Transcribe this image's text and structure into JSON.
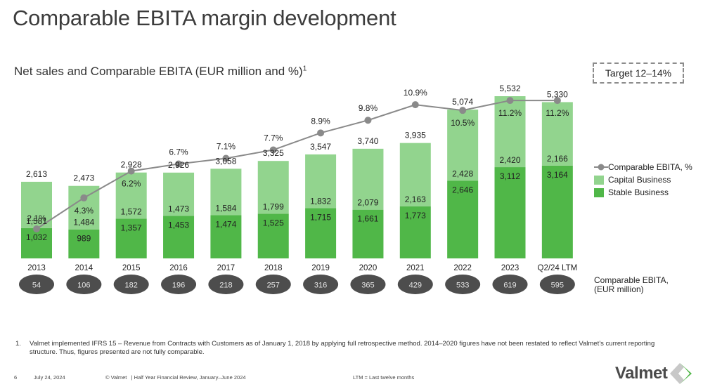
{
  "header": {
    "title": "Comparable EBITA margin development",
    "subtitle": "Net sales and Comparable EBITA (EUR million and %)",
    "subtitle_footnote_ref": "1",
    "target_label": "Target 12–14%"
  },
  "colors": {
    "capital_business": "#92d48e",
    "stable_business": "#50b748",
    "ebita_line": "#8a8a8a",
    "ebita_ellipse": "#4d4d4d",
    "ellipse_text": "#e6e6e6"
  },
  "chart_data": {
    "type": "bar",
    "subtype": "stacked bar with line overlay",
    "title": "Net sales and Comparable EBITA (EUR million and %)",
    "categories": [
      "2013",
      "2014",
      "2015",
      "2016",
      "2017",
      "2018",
      "2019",
      "2020",
      "2021",
      "2022",
      "2023",
      "Q2/24 LTM"
    ],
    "series": [
      {
        "name": "Stable Business",
        "type": "bar",
        "values": [
          1032,
          989,
          1357,
          1453,
          1474,
          1525,
          1715,
          1661,
          1773,
          2646,
          3112,
          3164
        ]
      },
      {
        "name": "Capital Business",
        "type": "bar",
        "values": [
          1581,
          1484,
          1572,
          1473,
          1584,
          1799,
          1832,
          2079,
          2163,
          2428,
          2420,
          2166
        ]
      },
      {
        "name": "Comparable EBITA, %",
        "type": "line",
        "values": [
          2.1,
          4.3,
          6.2,
          6.7,
          7.1,
          7.7,
          8.9,
          9.8,
          10.9,
          10.5,
          11.2,
          11.2
        ]
      }
    ],
    "totals": [
      "2,613",
      "2,473",
      "2,928",
      "2,926",
      "3,058",
      "3,325",
      "3,547",
      "3,740",
      "3,935",
      "5,074",
      "5,532",
      "5,330"
    ],
    "stable_labels": [
      "1,032",
      "989",
      "1,357",
      "1,453",
      "1,474",
      "1,525",
      "1,715",
      "1,661",
      "1,773",
      "2,646",
      "3,112",
      "3,164"
    ],
    "capital_labels": [
      "1,581",
      "1,484",
      "1,572",
      "1,473",
      "1,584",
      "1,799",
      "1,832",
      "2,079",
      "2,163",
      "2,428",
      "2,420",
      "2,166"
    ],
    "pct_labels": [
      "2.1%",
      "4.3%",
      "6.2%",
      "6.7%",
      "7.1%",
      "7.7%",
      "8.9%",
      "9.8%",
      "10.9%",
      "10.5%",
      "11.2%",
      "11.2%"
    ],
    "comparable_ebita_eur_million": [
      "54",
      "106",
      "182",
      "196",
      "218",
      "257",
      "316",
      "365",
      "429",
      "533",
      "619",
      "595"
    ],
    "legend": [
      "Comparable EBITA, %",
      "Capital Business",
      "Stable Business"
    ],
    "legend_position": "right",
    "grid": false,
    "ylim": [
      0,
      5800
    ],
    "xlabel": "",
    "ylabel": ""
  },
  "side_label": {
    "line1": "Comparable EBITA,",
    "line2": "(EUR million)"
  },
  "footnote": {
    "number": "1.",
    "text": "Valmet implemented IFRS 15 – Revenue from Contracts with Customers as of January 1, 2018 by applying full retrospective method. 2014–2020 figures have not been restated to reflect Valmet’s current reporting structure. Thus, figures presented are not fully comparable."
  },
  "footer": {
    "page_number": "6",
    "date": "July 24, 2024",
    "copyright": "© Valmet   | Half Year Financial Review, January–June 2024",
    "ltm_note": "LTM = Last twelve months",
    "logo_text": "Valmet"
  }
}
